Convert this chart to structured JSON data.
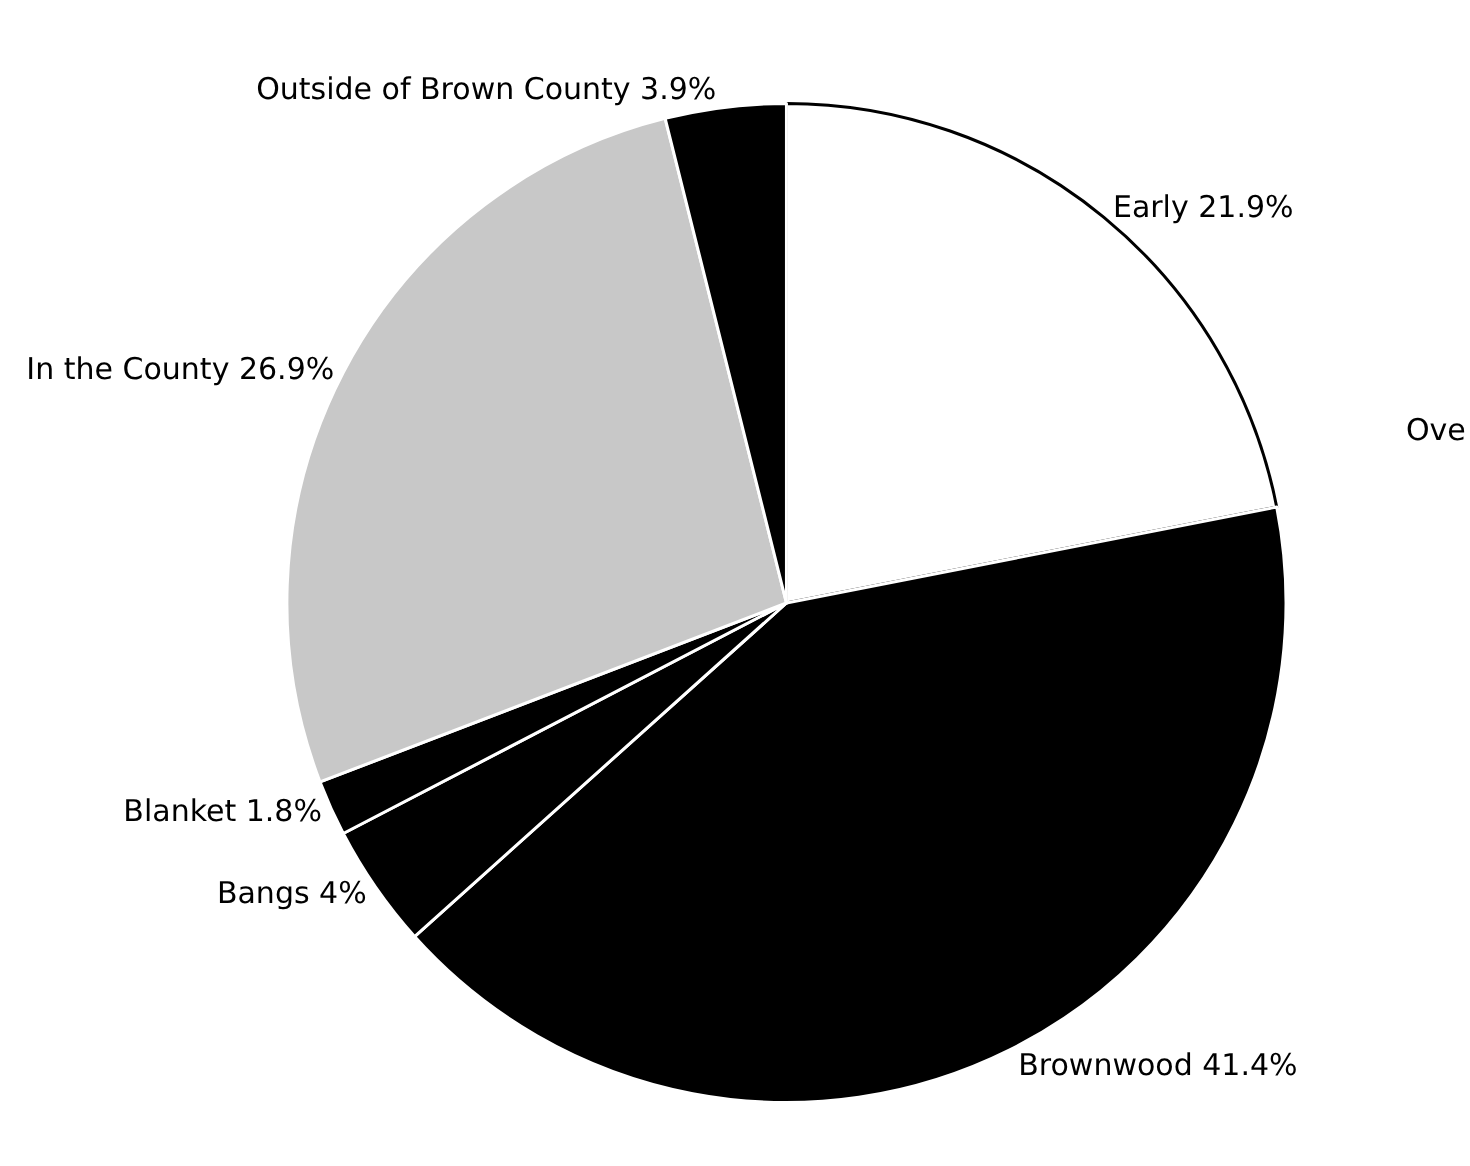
{
  "chart_data": {
    "type": "pie",
    "categories": [
      "Early",
      "Brownwood",
      "Bangs",
      "Blanket",
      "In the County",
      "Outside of Brown County"
    ],
    "values": [
      21.9,
      41.4,
      4,
      1.8,
      26.9,
      3.9
    ],
    "value_labels": [
      "21.9%",
      "41.4%",
      "4%",
      "1.8%",
      "26.9%",
      "3.9%"
    ],
    "colors": [
      "#ffffff",
      "#000000",
      "#000000",
      "#000000",
      "#c8c8c8",
      "#000000"
    ],
    "annotations": [
      "Ove"
    ],
    "legend": false
  }
}
